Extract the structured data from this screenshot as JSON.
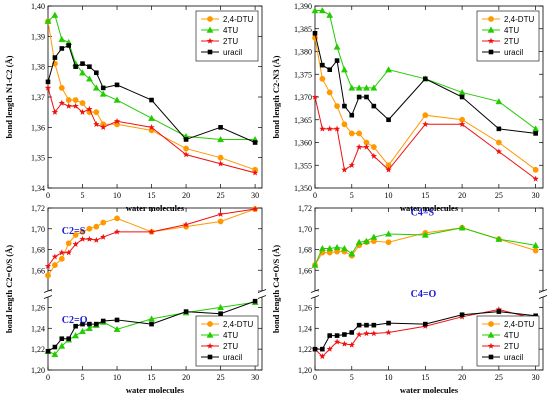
{
  "colors": {
    "orange": "#ff9900",
    "green": "#22cc00",
    "red": "#ee1111",
    "black": "#000000",
    "dark_red": "#cc0000",
    "annotation_blue": "#1a1ad6"
  },
  "chart_data": [
    {
      "type": "line",
      "panel": "top-left",
      "ylabel": "bond length N1-C2 (Å)",
      "xlabel": "water molecules",
      "xlim": [
        0,
        31
      ],
      "ylim": [
        1.34,
        1.4
      ],
      "xticks": [
        0,
        5,
        10,
        15,
        20,
        25,
        30
      ],
      "yticks": [
        1.34,
        1.35,
        1.36,
        1.37,
        1.38,
        1.39,
        1.4
      ],
      "ytick_labels": [
        "1,34",
        "1,35",
        "1,36",
        "1,37",
        "1,38",
        "1,39",
        "1,40"
      ],
      "legend": "top-right",
      "series": [
        {
          "name": "2,4-DTU",
          "color": "#ff9900",
          "marker": "circle",
          "x": [
            0,
            1,
            2,
            3,
            4,
            5,
            6,
            7,
            8,
            10,
            15,
            20,
            25,
            30
          ],
          "y": [
            1.395,
            1.381,
            1.373,
            1.369,
            1.369,
            1.368,
            1.365,
            1.365,
            1.361,
            1.361,
            1.359,
            1.353,
            1.35,
            1.346
          ]
        },
        {
          "name": "4TU",
          "color": "#22cc00",
          "marker": "triangle",
          "x": [
            0,
            1,
            2,
            3,
            4,
            5,
            6,
            7,
            8,
            10,
            15,
            20,
            25,
            30
          ],
          "y": [
            1.395,
            1.397,
            1.389,
            1.388,
            1.381,
            1.378,
            1.376,
            1.373,
            1.371,
            1.369,
            1.363,
            1.357,
            1.356,
            1.356
          ]
        },
        {
          "name": "2TU",
          "color": "#ee1111",
          "marker": "star",
          "x": [
            0,
            1,
            2,
            3,
            4,
            5,
            6,
            7,
            8,
            10,
            15,
            20,
            25,
            30
          ],
          "y": [
            1.373,
            1.365,
            1.368,
            1.367,
            1.367,
            1.365,
            1.366,
            1.361,
            1.36,
            1.362,
            1.36,
            1.351,
            1.348,
            1.345
          ]
        },
        {
          "name": "uracil",
          "color": "#000000",
          "marker": "square",
          "x": [
            0,
            1,
            2,
            3,
            4,
            5,
            6,
            7,
            8,
            10,
            15,
            20,
            25,
            30
          ],
          "y": [
            1.375,
            1.383,
            1.386,
            1.387,
            1.38,
            1.381,
            1.38,
            1.378,
            1.373,
            1.374,
            1.369,
            1.356,
            1.36,
            1.355
          ]
        }
      ]
    },
    {
      "type": "line",
      "panel": "top-right",
      "ylabel": "bond length C2-N3 (Å)",
      "xlabel": "water molecules",
      "xlim": [
        0,
        31
      ],
      "ylim": [
        1.35,
        1.39
      ],
      "xticks": [
        0,
        5,
        10,
        15,
        20,
        25,
        30
      ],
      "yticks": [
        1.35,
        1.355,
        1.36,
        1.365,
        1.37,
        1.375,
        1.38,
        1.385,
        1.39
      ],
      "ytick_labels": [
        "1,350",
        "1,355",
        "1,360",
        "1,365",
        "1,370",
        "1,375",
        "1,380",
        "1,385",
        "1,390"
      ],
      "legend": "top-right",
      "series": [
        {
          "name": "2,4-DTU",
          "color": "#ff9900",
          "marker": "circle",
          "x": [
            0,
            1,
            2,
            3,
            4,
            5,
            6,
            7,
            8,
            10,
            15,
            20,
            25,
            30
          ],
          "y": [
            1.383,
            1.374,
            1.371,
            1.368,
            1.364,
            1.362,
            1.362,
            1.36,
            1.359,
            1.355,
            1.366,
            1.365,
            1.36,
            1.354
          ]
        },
        {
          "name": "4TU",
          "color": "#22cc00",
          "marker": "triangle",
          "x": [
            0,
            1,
            2,
            3,
            4,
            5,
            6,
            7,
            8,
            10,
            15,
            20,
            25,
            30
          ],
          "y": [
            1.389,
            1.389,
            1.388,
            1.381,
            1.376,
            1.372,
            1.372,
            1.372,
            1.372,
            1.376,
            1.374,
            1.371,
            1.369,
            1.363
          ]
        },
        {
          "name": "2TU",
          "color": "#ee1111",
          "marker": "star",
          "x": [
            0,
            1,
            2,
            3,
            4,
            5,
            6,
            7,
            8,
            10,
            15,
            20,
            25,
            30
          ],
          "y": [
            1.37,
            1.363,
            1.363,
            1.363,
            1.354,
            1.355,
            1.359,
            1.359,
            1.357,
            1.354,
            1.364,
            1.364,
            1.358,
            1.352
          ]
        },
        {
          "name": "uracil",
          "color": "#000000",
          "marker": "square",
          "x": [
            0,
            1,
            2,
            3,
            4,
            5,
            6,
            7,
            8,
            10,
            15,
            20,
            25,
            30
          ],
          "y": [
            1.384,
            1.377,
            1.376,
            1.378,
            1.368,
            1.366,
            1.37,
            1.37,
            1.368,
            1.365,
            1.374,
            1.37,
            1.363,
            1.362
          ]
        }
      ]
    },
    {
      "type": "line",
      "panel": "bottom-left",
      "ylabel": "bond length C2=O/S (Å)",
      "xlabel": "water molecules",
      "xlim": [
        0,
        31
      ],
      "broken_axis": true,
      "upper_range": [
        1.64,
        1.72
      ],
      "lower_range": [
        1.2,
        1.27
      ],
      "xticks": [
        0,
        5,
        10,
        15,
        20,
        25,
        30
      ],
      "upper_yticks": [
        1.64,
        1.66,
        1.68,
        1.7,
        1.72
      ],
      "upper_ytick_labels": [
        "",
        "1,66",
        "1,68",
        "1,70",
        "1,72"
      ],
      "lower_yticks": [
        1.2,
        1.22,
        1.24,
        1.26
      ],
      "lower_ytick_labels": [
        "1,20",
        "1,22",
        "1,24",
        "1,26"
      ],
      "annotations": [
        {
          "text": "C2=S",
          "color": "#1a1ad6",
          "x": 2,
          "y": 1.695
        },
        {
          "text": "C2=O",
          "color": "#1a1ad6",
          "x": 2,
          "y": 1.245
        }
      ],
      "legend": "bottom-right",
      "series": [
        {
          "name": "2,4-DTU",
          "color": "#ff9900",
          "marker": "circle",
          "x": [
            0,
            1,
            2,
            3,
            4,
            5,
            6,
            7,
            8,
            10,
            15,
            20,
            25,
            30
          ],
          "y": [
            1.655,
            1.665,
            1.671,
            1.686,
            1.694,
            1.697,
            1.7,
            1.702,
            1.706,
            1.71,
            1.697,
            1.702,
            1.707,
            1.719
          ]
        },
        {
          "name": "4TU",
          "color": "#22cc00",
          "marker": "triangle",
          "x": [
            0,
            1,
            2,
            3,
            4,
            5,
            6,
            7,
            8,
            10,
            15,
            20,
            25,
            30
          ],
          "y": [
            1.218,
            1.215,
            1.223,
            1.229,
            1.233,
            1.237,
            1.24,
            1.243,
            1.246,
            1.239,
            1.249,
            1.255,
            1.26,
            1.265
          ]
        },
        {
          "name": "2TU",
          "color": "#ee1111",
          "marker": "star",
          "x": [
            0,
            1,
            2,
            3,
            4,
            5,
            6,
            7,
            8,
            10,
            15,
            20,
            25,
            30
          ],
          "y": [
            1.664,
            1.673,
            1.677,
            1.677,
            1.685,
            1.69,
            1.69,
            1.689,
            1.692,
            1.697,
            1.697,
            1.704,
            1.714,
            1.719
          ]
        },
        {
          "name": "uracil",
          "color": "#000000",
          "marker": "square",
          "x": [
            0,
            1,
            2,
            3,
            4,
            5,
            6,
            7,
            8,
            10,
            15,
            20,
            25,
            30
          ],
          "y": [
            1.218,
            1.222,
            1.23,
            1.23,
            1.242,
            1.244,
            1.244,
            1.244,
            1.247,
            1.248,
            1.244,
            1.256,
            1.254,
            1.266
          ]
        }
      ]
    },
    {
      "type": "line",
      "panel": "bottom-right",
      "ylabel": "bond length C4=O/S (Å)",
      "xlabel": "water molecules",
      "xlim": [
        0,
        31
      ],
      "broken_axis": true,
      "upper_range": [
        1.64,
        1.72
      ],
      "lower_range": [
        1.2,
        1.27
      ],
      "xticks": [
        0,
        5,
        10,
        15,
        20,
        25,
        30
      ],
      "upper_yticks": [
        1.64,
        1.66,
        1.68,
        1.7,
        1.72
      ],
      "upper_ytick_labels": [
        "",
        "1,66",
        "1,68",
        "1,70",
        "1,72"
      ],
      "lower_yticks": [
        1.2,
        1.22,
        1.24,
        1.26
      ],
      "lower_ytick_labels": [
        "1,20",
        "1,22",
        "1,24",
        "1,26"
      ],
      "annotations": [
        {
          "text": "C4=S",
          "color": "#1a1ad6",
          "x": 13,
          "y": 1.713
        },
        {
          "text": "C4=O",
          "color": "#1a1ad6",
          "x": 13,
          "y": 1.27
        }
      ],
      "legend": "bottom-right",
      "series": [
        {
          "name": "2,4-DTU",
          "color": "#ff9900",
          "marker": "circle",
          "x": [
            0,
            1,
            2,
            3,
            4,
            5,
            6,
            7,
            8,
            10,
            15,
            20,
            25,
            30
          ],
          "y": [
            1.665,
            1.677,
            1.677,
            1.678,
            1.678,
            1.674,
            1.684,
            1.687,
            1.688,
            1.687,
            1.696,
            1.701,
            1.69,
            1.679
          ]
        },
        {
          "name": "4TU",
          "color": "#22cc00",
          "marker": "triangle",
          "x": [
            0,
            1,
            2,
            3,
            4,
            5,
            6,
            7,
            8,
            10,
            15,
            20,
            25,
            30
          ],
          "y": [
            1.665,
            1.681,
            1.681,
            1.682,
            1.681,
            1.676,
            1.687,
            1.688,
            1.692,
            1.695,
            1.694,
            1.701,
            1.69,
            1.684
          ]
        },
        {
          "name": "2TU",
          "color": "#ee1111",
          "marker": "star",
          "x": [
            0,
            1,
            2,
            3,
            4,
            5,
            6,
            7,
            8,
            10,
            15,
            20,
            25,
            30
          ],
          "y": [
            1.22,
            1.213,
            1.22,
            1.227,
            1.225,
            1.224,
            1.234,
            1.235,
            1.235,
            1.236,
            1.242,
            1.251,
            1.258,
            1.249
          ]
        },
        {
          "name": "uracil",
          "color": "#000000",
          "marker": "square",
          "x": [
            0,
            1,
            2,
            3,
            4,
            5,
            6,
            7,
            8,
            10,
            15,
            20,
            25,
            30
          ],
          "y": [
            1.22,
            1.22,
            1.233,
            1.233,
            1.234,
            1.236,
            1.243,
            1.243,
            1.243,
            1.245,
            1.244,
            1.253,
            1.256,
            1.252
          ]
        }
      ]
    }
  ]
}
